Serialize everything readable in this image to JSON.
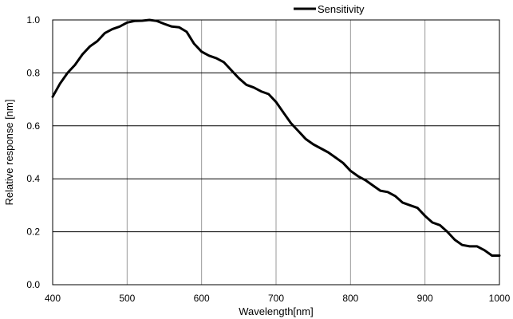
{
  "chart_data": {
    "type": "line",
    "title": "",
    "xlabel": "Wavelength[nm]",
    "ylabel": "Relative response [nm]",
    "xlim": [
      400,
      1000
    ],
    "ylim": [
      0.0,
      1.0
    ],
    "x_ticks": [
      "400",
      "500",
      "600",
      "700",
      "800",
      "900",
      "1000"
    ],
    "y_ticks": [
      "0.0",
      "0.2",
      "0.4",
      "0.6",
      "0.8",
      "1.0"
    ],
    "grid": true,
    "legend_position": "top-right",
    "series": [
      {
        "name": "Sensitivity",
        "color": "#000000",
        "x": [
          400,
          410,
          420,
          430,
          440,
          450,
          460,
          470,
          480,
          490,
          500,
          510,
          520,
          530,
          540,
          550,
          560,
          570,
          580,
          590,
          600,
          610,
          620,
          630,
          640,
          650,
          660,
          670,
          680,
          690,
          700,
          710,
          720,
          730,
          740,
          750,
          760,
          770,
          780,
          790,
          800,
          810,
          820,
          830,
          840,
          850,
          860,
          870,
          880,
          890,
          900,
          910,
          920,
          930,
          940,
          950,
          960,
          970,
          980,
          990,
          1000
        ],
        "y": [
          0.71,
          0.76,
          0.8,
          0.83,
          0.87,
          0.9,
          0.92,
          0.95,
          0.965,
          0.975,
          0.99,
          0.996,
          0.997,
          1.0,
          0.996,
          0.985,
          0.975,
          0.972,
          0.955,
          0.91,
          0.88,
          0.865,
          0.855,
          0.84,
          0.81,
          0.78,
          0.755,
          0.745,
          0.73,
          0.72,
          0.69,
          0.65,
          0.61,
          0.58,
          0.55,
          0.53,
          0.515,
          0.5,
          0.48,
          0.46,
          0.43,
          0.41,
          0.395,
          0.375,
          0.355,
          0.35,
          0.335,
          0.31,
          0.3,
          0.29,
          0.26,
          0.235,
          0.225,
          0.2,
          0.17,
          0.15,
          0.145,
          0.145,
          0.13,
          0.11,
          0.11
        ]
      }
    ]
  }
}
